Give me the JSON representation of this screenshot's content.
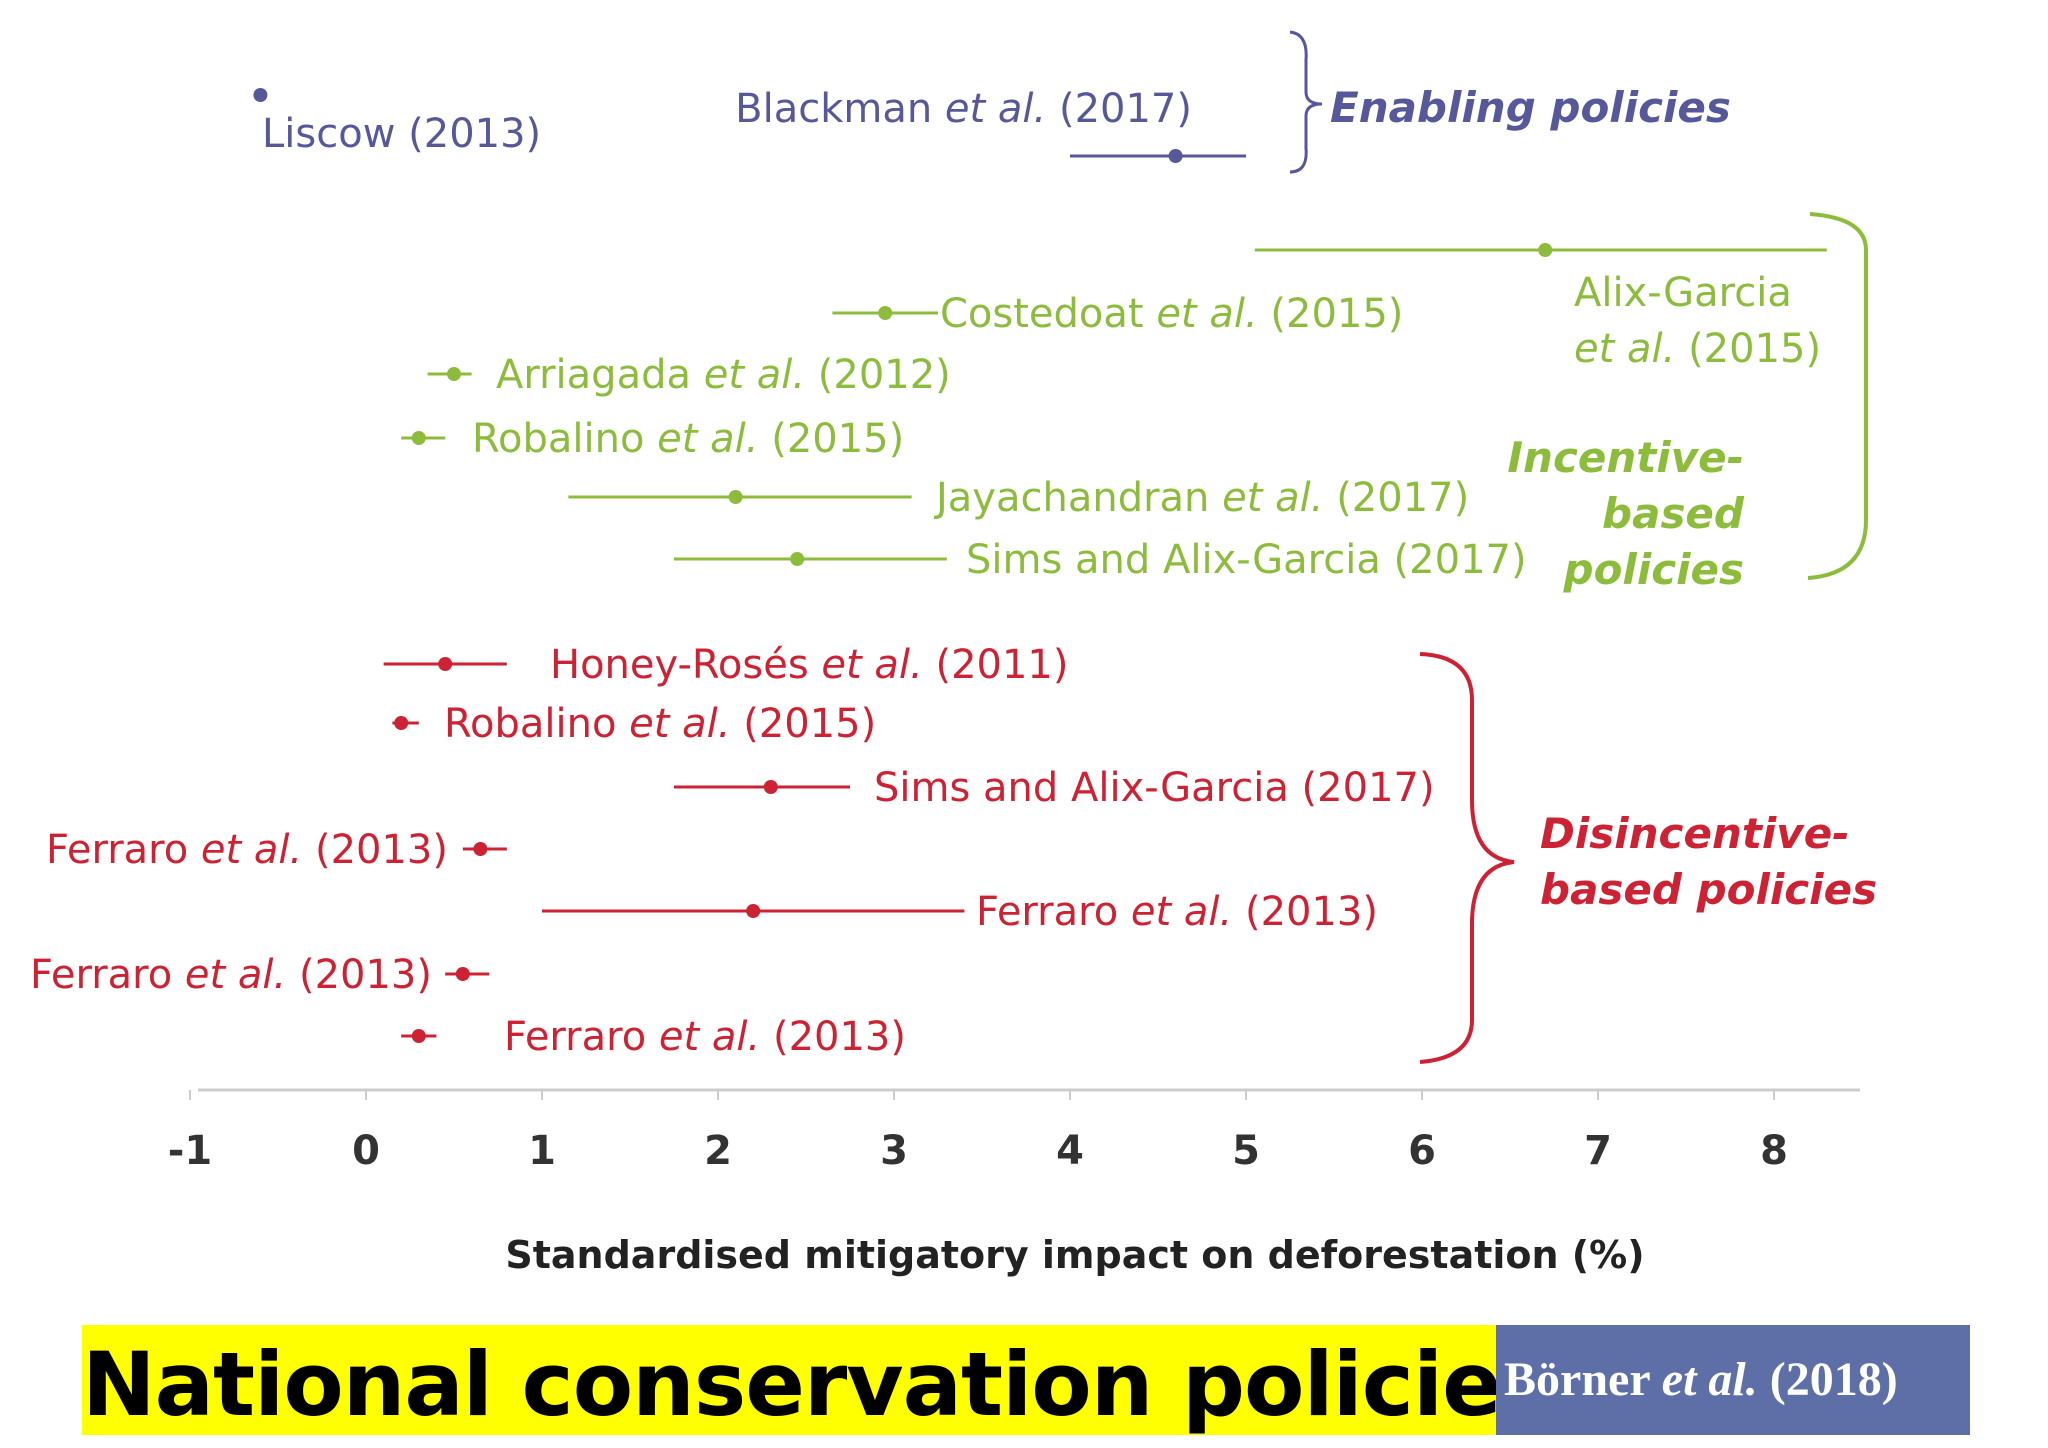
{
  "chart_data": {
    "type": "forest",
    "xlabel": "Standardised mitigatory impact on deforestation (%)",
    "xlim": [
      -1,
      8.5
    ],
    "xticks": [
      -1,
      0,
      1,
      2,
      3,
      4,
      5,
      6,
      7,
      8
    ],
    "colors": {
      "enabling": "#56589a",
      "incentive": "#8dbc3c",
      "disincentive": "#cc2233",
      "axis": "#cccccc"
    },
    "groups": [
      {
        "key": "enabling",
        "label": "Enabling policies",
        "label_lines": [
          "Enabling policies"
        ]
      },
      {
        "key": "incentive",
        "label": "Incentive-based policies",
        "label_lines": [
          "Incentive-",
          "based",
          "policies"
        ]
      },
      {
        "key": "disincentive",
        "label": "Disincentive-based policies",
        "label_lines": [
          "Disincentive-",
          "based policies"
        ]
      }
    ],
    "studies": [
      {
        "group": "enabling",
        "label": "Liscow (2013)",
        "estimate": -0.6,
        "ci_low": -0.6,
        "ci_high": -0.6
      },
      {
        "group": "enabling",
        "label": "Blackman et al. (2017)",
        "estimate": 4.6,
        "ci_low": 4.0,
        "ci_high": 5.0
      },
      {
        "group": "incentive",
        "label": "Alix-Garcia et al. (2015)",
        "estimate": 6.7,
        "ci_low": 5.05,
        "ci_high": 8.3
      },
      {
        "group": "incentive",
        "label": "Costedoat et al. (2015)",
        "estimate": 2.95,
        "ci_low": 2.65,
        "ci_high": 3.25
      },
      {
        "group": "incentive",
        "label": "Arriagada et al. (2012)",
        "estimate": 0.5,
        "ci_low": 0.35,
        "ci_high": 0.6
      },
      {
        "group": "incentive",
        "label": "Robalino et al. (2015)",
        "estimate": 0.3,
        "ci_low": 0.2,
        "ci_high": 0.45
      },
      {
        "group": "incentive",
        "label": "Jayachandran et al. (2017)",
        "estimate": 2.1,
        "ci_low": 1.15,
        "ci_high": 3.1
      },
      {
        "group": "incentive",
        "label": "Sims and Alix-Garcia (2017)",
        "estimate": 2.45,
        "ci_low": 1.75,
        "ci_high": 3.3
      },
      {
        "group": "disincentive",
        "label": "Honey-Rosés et al. (2011)",
        "estimate": 0.45,
        "ci_low": 0.1,
        "ci_high": 0.8
      },
      {
        "group": "disincentive",
        "label": "Robalino et al. (2015)",
        "estimate": 0.2,
        "ci_low": 0.15,
        "ci_high": 0.3
      },
      {
        "group": "disincentive",
        "label": "Sims and Alix-Garcia (2017)",
        "estimate": 2.3,
        "ci_low": 1.75,
        "ci_high": 2.75
      },
      {
        "group": "disincentive",
        "label": "Ferraro et al. (2013)",
        "estimate": 0.65,
        "ci_low": 0.55,
        "ci_high": 0.8
      },
      {
        "group": "disincentive",
        "label": "Ferraro et al. (2013)",
        "estimate": 2.2,
        "ci_low": 1.0,
        "ci_high": 3.4
      },
      {
        "group": "disincentive",
        "label": "Ferraro et al. (2013)",
        "estimate": 0.55,
        "ci_low": 0.45,
        "ci_high": 0.7
      },
      {
        "group": "disincentive",
        "label": "Ferraro et al. (2013)",
        "estimate": 0.3,
        "ci_low": 0.2,
        "ci_high": 0.4
      }
    ]
  },
  "footer": {
    "title": "National conservation policies",
    "citation_author": "Börner ",
    "citation_etal": "et al.",
    "citation_year": " (2018)",
    "title_bg": "#ffff00",
    "citation_bg": "#5e6fa8"
  }
}
